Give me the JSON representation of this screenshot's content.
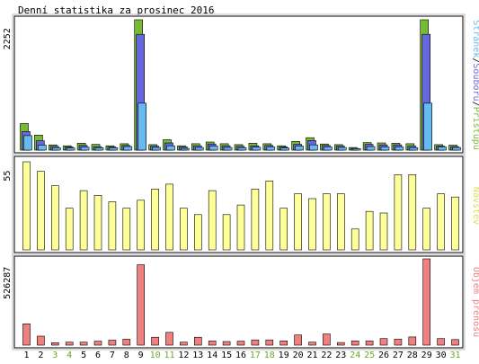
{
  "title": "Denní statistika za prosinec 2016",
  "colors": {
    "background": "#ffffff",
    "frame": "#000000",
    "hits": "#77bb33",
    "files": "#6666dd",
    "pages": "#66bbee",
    "visits": "#ffff99",
    "kbytes": "#f08080",
    "weekend_label": "#66aa22",
    "day_label": "#000000"
  },
  "chart_data": [
    {
      "type": "bar",
      "grid": false,
      "legend": "right, vertical text",
      "ymax_label": "2252",
      "legend_entries": [
        "Stránek",
        "Souborů",
        "Přístupů"
      ],
      "categories": [
        "1",
        "2",
        "3",
        "4",
        "5",
        "6",
        "7",
        "8",
        "9",
        "10",
        "11",
        "12",
        "13",
        "14",
        "15",
        "16",
        "17",
        "18",
        "19",
        "20",
        "21",
        "22",
        "23",
        "24",
        "25",
        "26",
        "27",
        "28",
        "29",
        "30",
        "31"
      ],
      "series": [
        {
          "name": "Přístupů",
          "color": "#77bb33",
          "values": [
            460,
            260,
            90,
            75,
            120,
            100,
            75,
            110,
            2252,
            95,
            180,
            75,
            110,
            140,
            110,
            95,
            120,
            110,
            75,
            150,
            215,
            105,
            95,
            45,
            130,
            125,
            120,
            110,
            2252,
            95,
            85
          ]
        },
        {
          "name": "Souborů",
          "color": "#6666dd",
          "values": [
            320,
            160,
            65,
            55,
            80,
            60,
            55,
            80,
            2000,
            70,
            125,
            55,
            75,
            105,
            75,
            65,
            75,
            80,
            55,
            100,
            165,
            80,
            70,
            30,
            100,
            90,
            90,
            70,
            2000,
            70,
            60
          ]
        },
        {
          "name": "Stránek",
          "color": "#66bbee",
          "values": [
            250,
            85,
            40,
            35,
            50,
            40,
            40,
            60,
            810,
            45,
            75,
            30,
            45,
            70,
            45,
            40,
            50,
            55,
            35,
            70,
            90,
            55,
            45,
            25,
            60,
            55,
            55,
            40,
            810,
            55,
            45
          ]
        }
      ],
      "ylim": [
        0,
        2252
      ]
    },
    {
      "type": "bar",
      "grid": false,
      "legend": "right, vertical text",
      "ymax_label": "55",
      "legend_entries": [
        "Návštěv"
      ],
      "categories": [
        "1",
        "2",
        "3",
        "4",
        "5",
        "6",
        "7",
        "8",
        "9",
        "10",
        "11",
        "12",
        "13",
        "14",
        "15",
        "16",
        "17",
        "18",
        "19",
        "20",
        "21",
        "22",
        "23",
        "24",
        "25",
        "26",
        "27",
        "28",
        "29",
        "30",
        "31"
      ],
      "series": [
        {
          "name": "Návštěv",
          "color": "#ffff99",
          "values": [
            55,
            49,
            40,
            26,
            37,
            34,
            30,
            26,
            31,
            38,
            41,
            26,
            22,
            37,
            22,
            28,
            38,
            43,
            26,
            35,
            32,
            35,
            35,
            13,
            24,
            23,
            47,
            47,
            26,
            35,
            33
          ]
        }
      ],
      "ylim": [
        0,
        55
      ]
    },
    {
      "type": "bar",
      "grid": false,
      "legend": "right, vertical text",
      "ymax_label": "526287",
      "legend_entries": [
        "Objem přenosů"
      ],
      "categories": [
        "1",
        "2",
        "3",
        "4",
        "5",
        "6",
        "7",
        "8",
        "9",
        "10",
        "11",
        "12",
        "13",
        "14",
        "15",
        "16",
        "17",
        "18",
        "19",
        "20",
        "21",
        "22",
        "23",
        "24",
        "25",
        "26",
        "27",
        "28",
        "29",
        "30",
        "31"
      ],
      "series": [
        {
          "name": "Objem přenosů",
          "color": "#f08080",
          "values": [
            130000,
            55000,
            15000,
            18000,
            18000,
            24000,
            30000,
            36000,
            490000,
            48000,
            78000,
            18000,
            48000,
            25000,
            22000,
            24000,
            32000,
            32000,
            26000,
            62000,
            18000,
            68000,
            16000,
            26000,
            25000,
            40000,
            36000,
            50000,
            526287,
            40000,
            34000
          ]
        }
      ],
      "ylim": [
        0,
        526287
      ]
    }
  ],
  "weekend_days": [
    3,
    4,
    10,
    11,
    17,
    18,
    24,
    25,
    31
  ]
}
